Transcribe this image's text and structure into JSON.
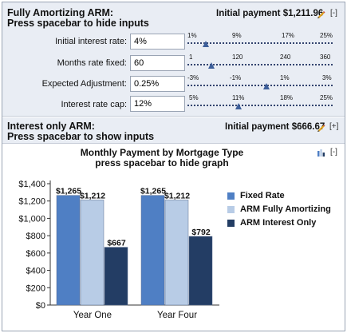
{
  "arm_full": {
    "title_line1": "Fully Amortizing ARM:",
    "title_line2": "Press spacebar to hide inputs",
    "initial_payment": "Initial payment $1,211.96",
    "toggle": "[-]",
    "rows": [
      {
        "label": "Initial interest rate:",
        "value": "4%",
        "ticks": [
          "1%",
          "9%",
          "17%",
          "25%"
        ],
        "thumb": 0.125
      },
      {
        "label": "Months rate fixed:",
        "value": "60",
        "ticks": [
          "1",
          "120",
          "240",
          "360"
        ],
        "thumb": 0.164
      },
      {
        "label": "Expected Adjustment:",
        "value": "0.25%",
        "ticks": [
          "-3%",
          "-1%",
          "1%",
          "3%"
        ],
        "thumb": 0.542
      },
      {
        "label": "Interest rate cap:",
        "value": "12%",
        "ticks": [
          "5%",
          "11%",
          "18%",
          "25%"
        ],
        "thumb": 0.35
      }
    ]
  },
  "interest_only": {
    "title_line1": "Interest only ARM:",
    "title_line2": "Press spacebar to show inputs",
    "initial_payment": "Initial payment $666.67",
    "toggle": "[+]"
  },
  "chart": {
    "title_line1": "Monthly Payment by Mortgage Type",
    "title_line2": "press spacebar to hide graph",
    "toggle": "[-]",
    "icon": "bar-chart-icon"
  },
  "chart_data": {
    "type": "bar",
    "title": "Monthly Payment by Mortgage Type",
    "categories": [
      "Year One",
      "Year Four"
    ],
    "ylim": [
      0,
      1400
    ],
    "yticks": [
      "$0",
      "$200",
      "$400",
      "$600",
      "$800",
      "$1,000",
      "$1,200",
      "$1,400"
    ],
    "grid": false,
    "legend_position": "right",
    "series": [
      {
        "name": "Fixed Rate",
        "color": "#4f7fc4",
        "values": [
          1265,
          1265
        ],
        "labels": [
          "$1,265",
          "$1,265"
        ]
      },
      {
        "name": "ARM Fully Amortizing",
        "color": "#b8cce6",
        "values": [
          1212,
          1212
        ],
        "labels": [
          "$1,212",
          "$1,212"
        ]
      },
      {
        "name": "ARM Interest Only",
        "color": "#233d64",
        "values": [
          667,
          792
        ],
        "labels": [
          "$667",
          "$792"
        ]
      }
    ]
  }
}
